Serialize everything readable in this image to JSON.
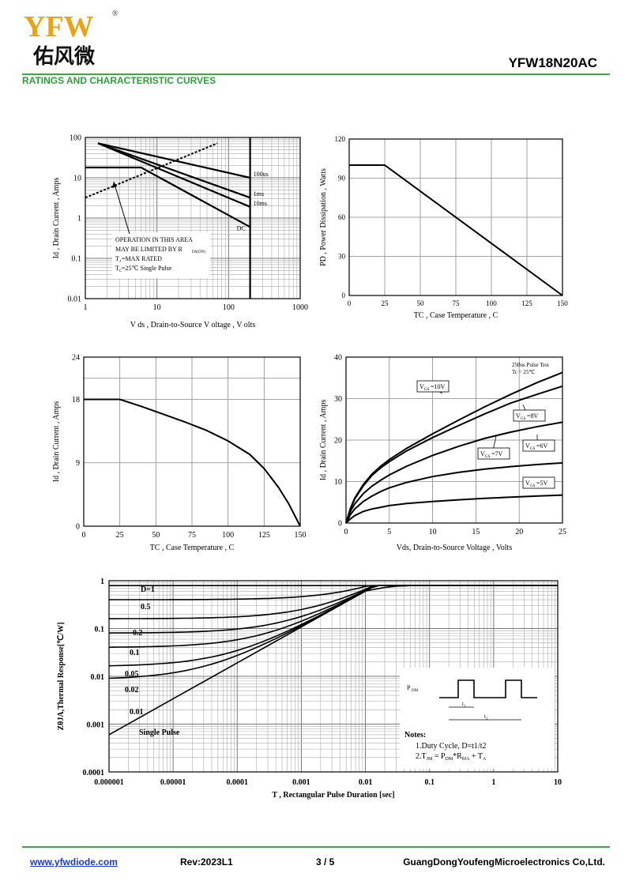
{
  "header": {
    "brand_latin": "YFW",
    "brand_cn": "佑风微",
    "registered": "®",
    "part_number": "YFW18N20AC",
    "section_title": "RATINGS AND CHARACTERISTIC CURVES"
  },
  "footer": {
    "website": "www.yfwdiode.com",
    "revision": "Rev:2023L1",
    "page": "3 / 5",
    "company": "GuangDongYoufengMicroelectronics Co,Ltd."
  },
  "colors": {
    "brand_green": "#3aa84a",
    "logo_gold": "#e8a419",
    "link_blue": "#1a38c8"
  },
  "chart_data": [
    {
      "id": "soa",
      "type": "line",
      "xscale": "log",
      "yscale": "log",
      "xlim": [
        1,
        1000
      ],
      "ylim": [
        0.01,
        100
      ],
      "xticks": [
        "1",
        "10",
        "100",
        "1000"
      ],
      "yticks": [
        "0.01",
        "0.1",
        "1",
        "10",
        "100"
      ],
      "xlabel": "V ds , Drain-to-Source V oltage , V olts",
      "ylabel": "Id , Drain Current , Amps",
      "series": [
        {
          "name": "100us",
          "x": [
            1.5,
            200
          ],
          "y": [
            72,
            10
          ]
        },
        {
          "name": "1ms",
          "x": [
            1.5,
            200
          ],
          "y": [
            72,
            3.2
          ]
        },
        {
          "name": "10ms",
          "x": [
            1.5,
            200
          ],
          "y": [
            72,
            1.9
          ]
        },
        {
          "name": "DC",
          "x": [
            1,
            6,
            200
          ],
          "y": [
            18,
            18,
            0.6
          ]
        },
        {
          "name": "RDS(on) limit",
          "x": [
            1,
            70
          ],
          "y": [
            3.2,
            72
          ]
        },
        {
          "name": "BVDSS",
          "x": [
            200,
            200
          ],
          "y": [
            0.01,
            100
          ]
        }
      ],
      "annotations": [
        "OPERATION IN THIS AREA",
        "MAY BE LIMITED BY R",
        "DS(ON)",
        "T",
        "J",
        "=MAX RATED",
        "T",
        "C",
        "=25℃  Single Pulse"
      ]
    },
    {
      "id": "pd_vs_tc",
      "type": "line",
      "xlim": [
        0,
        150
      ],
      "ylim": [
        0,
        120
      ],
      "xticks": [
        "0",
        "25",
        "50",
        "75",
        "100",
        "125",
        "150"
      ],
      "yticks": [
        "0",
        "30",
        "60",
        "90",
        "120"
      ],
      "xlabel": "TC , Case Temperature , C",
      "ylabel": "PD , Power Dissipation ,  Watts",
      "series": [
        {
          "x": [
            0,
            25,
            150
          ],
          "y": [
            100,
            100,
            0
          ]
        }
      ]
    },
    {
      "id": "id_vs_tc",
      "type": "line",
      "xlim": [
        0,
        150
      ],
      "ylim": [
        0,
        24
      ],
      "xticks": [
        "0",
        "25",
        "50",
        "75",
        "100",
        "125",
        "150"
      ],
      "yticks": [
        "0",
        "9",
        "18",
        "24"
      ],
      "xlabel": "TC , Case Temperature , C",
      "ylabel": "Id , Drain Current , Amps",
      "series": [
        {
          "x": [
            0,
            25,
            40,
            55,
            70,
            85,
            100,
            115,
            125,
            135,
            142,
            150
          ],
          "y": [
            18,
            18,
            17,
            15.9,
            14.8,
            13.6,
            12.1,
            10.2,
            8.2,
            5.5,
            3.2,
            0
          ]
        }
      ]
    },
    {
      "id": "output_characteristics",
      "type": "line",
      "xlim": [
        0,
        25
      ],
      "ylim": [
        0,
        40
      ],
      "xticks": [
        "0",
        "5",
        "10",
        "15",
        "20",
        "25"
      ],
      "yticks": [
        "0",
        "10",
        "20",
        "30",
        "40"
      ],
      "xlabel": "Vds, Drain-to-Source Voltage , Volts",
      "ylabel": "Id , Drain Current , Amps",
      "annotations": [
        "250us Pulse Test",
        "Tc = 25℃"
      ],
      "x": [
        0,
        0.5,
        1,
        2,
        3,
        4,
        5,
        7,
        10,
        13,
        16,
        19,
        22,
        25
      ],
      "series": [
        {
          "name": "V",
          "sub": "GS",
          "level": "=10V",
          "values": [
            0,
            3.5,
            6,
            9.3,
            11.8,
            13.7,
            15.3,
            18,
            21.5,
            24.8,
            28,
            31,
            33.8,
            36.3
          ]
        },
        {
          "name": "V",
          "sub": "GS",
          "level": "=8V",
          "values": [
            0,
            3.4,
            5.8,
            9,
            11.5,
            13.3,
            14.8,
            17.4,
            20.6,
            23.5,
            26.3,
            28.9,
            31,
            33
          ]
        },
        {
          "name": "V",
          "sub": "GS",
          "level": "=7V",
          "values": [
            0,
            2.8,
            4.6,
            7.1,
            8.9,
            10.3,
            11.6,
            13.7,
            16.3,
            18.5,
            20.4,
            21.9,
            23.2,
            24.3
          ]
        },
        {
          "name": "V",
          "sub": "GS",
          "level": "=6V",
          "values": [
            0,
            2,
            3.4,
            5.2,
            6.5,
            7.6,
            8.5,
            9.8,
            11.2,
            12.2,
            13,
            13.6,
            14.1,
            14.5
          ]
        },
        {
          "name": "V",
          "sub": "GS",
          "level": "=5V",
          "values": [
            0,
            1,
            1.8,
            2.8,
            3.4,
            3.8,
            4.2,
            4.7,
            5.2,
            5.6,
            5.95,
            6.25,
            6.5,
            6.75
          ]
        }
      ]
    },
    {
      "id": "transient_thermal_response",
      "type": "line",
      "xscale": "log",
      "yscale": "log",
      "xlim": [
        1e-06,
        10
      ],
      "ylim": [
        0.0001,
        1
      ],
      "xticks": [
        "0.000001",
        "0.00001",
        "0.0001",
        "0.001",
        "0.01",
        "0.1",
        "1",
        "10"
      ],
      "yticks": [
        "0.0001",
        "0.001",
        "0.01",
        "0.1",
        "1"
      ],
      "xlabel": "T , Rectangular Pulse Duration [sec]",
      "ylabel": "ZθJA,Thermal Response[℃/W]",
      "series": [
        {
          "name": "D=1",
          "floor": 0.79
        },
        {
          "name": "0.5",
          "floor": 0.4
        },
        {
          "name": "0.2",
          "floor": 0.16
        },
        {
          "name": "0.1",
          "floor": 0.08
        },
        {
          "name": "0.05",
          "floor": 0.04
        },
        {
          "name": "0.02",
          "floor": 0.016
        },
        {
          "name": "0.01",
          "floor": 0.0085
        },
        {
          "name": "Single Pulse",
          "floor": 0
        }
      ],
      "single_pulse_points": {
        "x": [
          1e-06,
          0.01,
          0.02,
          0.03,
          0.05
        ],
        "y": [
          0.0006,
          0.61,
          0.72,
          0.77,
          0.79
        ]
      },
      "notes": {
        "title": "Notes:",
        "line1": "1.Duty  Cycle, D=t1/t2",
        "line2_a": "2.T",
        "line2_b": "JM",
        "line2_c": " = P",
        "line2_d": "DM",
        "line2_e": "*R",
        "line2_f": "θJA",
        "line2_g": " + T",
        "line2_h": "A",
        "pdm": "P",
        "pdm_sub": "DM",
        "t1": "t₁",
        "t2": "t₂"
      }
    }
  ]
}
